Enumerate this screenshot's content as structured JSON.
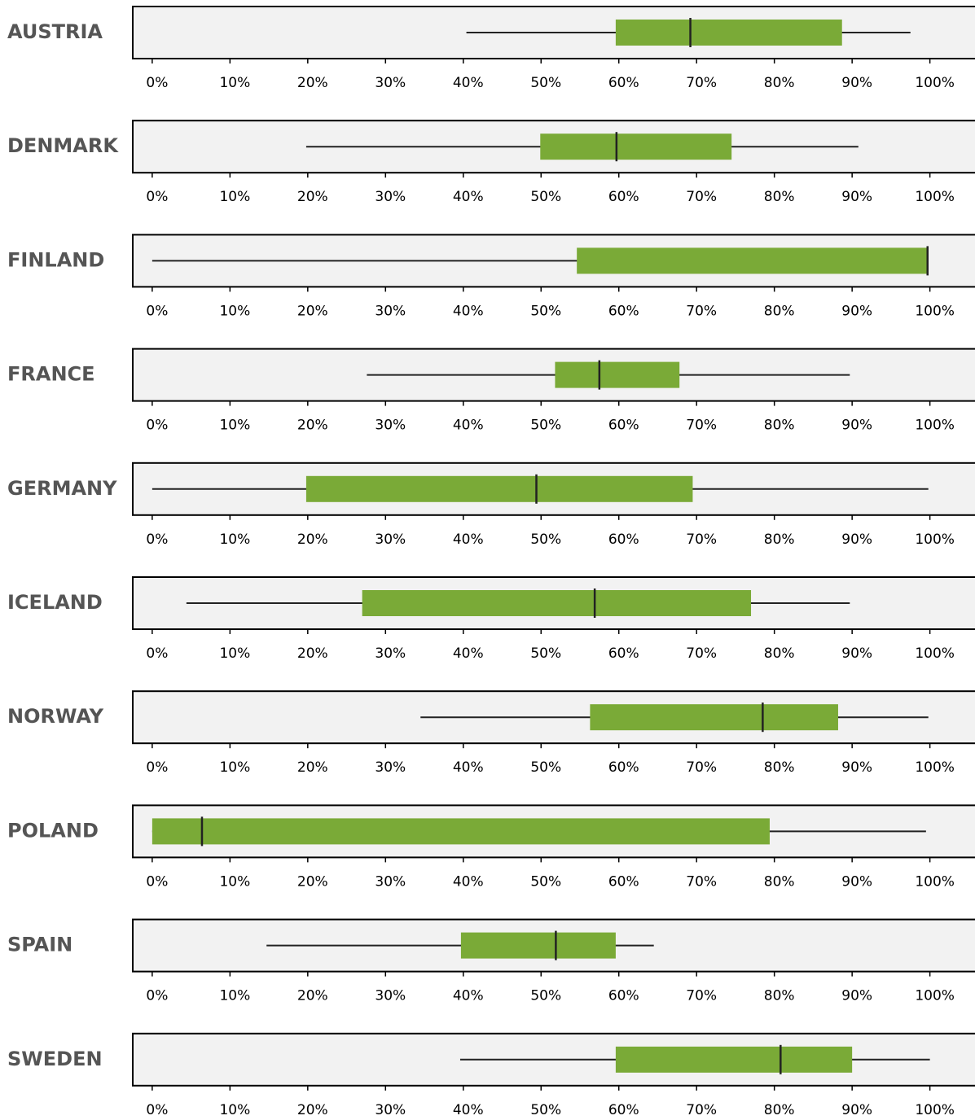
{
  "chart_data": [
    {
      "type": "box",
      "title": "AUSTRIA",
      "min": 40.4,
      "q1": 59.6,
      "median": 69.2,
      "q3": 88.7,
      "max": 97.5,
      "color": "#7aaa37",
      "xlim": [
        -2.5,
        105.8
      ],
      "xticks": [
        {
          "value": 0,
          "label": "0%"
        },
        {
          "value": 10,
          "label": "10%"
        },
        {
          "value": 20,
          "label": "20%"
        },
        {
          "value": 30,
          "label": "30%"
        },
        {
          "value": 40,
          "label": "40%"
        },
        {
          "value": 50,
          "label": "50%"
        },
        {
          "value": 60,
          "label": "60%"
        },
        {
          "value": 70,
          "label": "70%"
        },
        {
          "value": 80,
          "label": "80%"
        },
        {
          "value": 90,
          "label": "90%"
        },
        {
          "value": 100,
          "label": "100%"
        }
      ]
    },
    {
      "type": "box",
      "title": "DENMARK",
      "min": 19.8,
      "q1": 49.9,
      "median": 59.7,
      "q3": 74.5,
      "max": 90.8,
      "color": "#7aaa37",
      "xlim": [
        -2.5,
        105.8
      ],
      "xticks": [
        {
          "value": 0,
          "label": "0%"
        },
        {
          "value": 10,
          "label": "10%"
        },
        {
          "value": 20,
          "label": "20%"
        },
        {
          "value": 30,
          "label": "30%"
        },
        {
          "value": 40,
          "label": "40%"
        },
        {
          "value": 50,
          "label": "50%"
        },
        {
          "value": 60,
          "label": "60%"
        },
        {
          "value": 70,
          "label": "70%"
        },
        {
          "value": 80,
          "label": "80%"
        },
        {
          "value": 90,
          "label": "90%"
        },
        {
          "value": 100,
          "label": "100%"
        }
      ]
    },
    {
      "type": "box",
      "title": "FINLAND",
      "min": 0,
      "q1": 54.6,
      "median": 99.7,
      "q3": 99.7,
      "max": 99.7,
      "color": "#7aaa37",
      "xlim": [
        -2.5,
        105.8
      ],
      "xticks": [
        {
          "value": 0,
          "label": "0%"
        },
        {
          "value": 10,
          "label": "10%"
        },
        {
          "value": 20,
          "label": "20%"
        },
        {
          "value": 30,
          "label": "30%"
        },
        {
          "value": 40,
          "label": "40%"
        },
        {
          "value": 50,
          "label": "50%"
        },
        {
          "value": 60,
          "label": "60%"
        },
        {
          "value": 70,
          "label": "70%"
        },
        {
          "value": 80,
          "label": "80%"
        },
        {
          "value": 90,
          "label": "90%"
        },
        {
          "value": 100,
          "label": "100%"
        }
      ]
    },
    {
      "type": "box",
      "title": "FRANCE",
      "min": 27.6,
      "q1": 51.8,
      "median": 57.5,
      "q3": 67.8,
      "max": 89.7,
      "color": "#7aaa37",
      "xlim": [
        -2.5,
        105.8
      ],
      "xticks": [
        {
          "value": 0,
          "label": "0%"
        },
        {
          "value": 10,
          "label": "10%"
        },
        {
          "value": 20,
          "label": "20%"
        },
        {
          "value": 30,
          "label": "30%"
        },
        {
          "value": 40,
          "label": "40%"
        },
        {
          "value": 50,
          "label": "50%"
        },
        {
          "value": 60,
          "label": "60%"
        },
        {
          "value": 70,
          "label": "70%"
        },
        {
          "value": 80,
          "label": "80%"
        },
        {
          "value": 90,
          "label": "90%"
        },
        {
          "value": 100,
          "label": "100%"
        }
      ]
    },
    {
      "type": "box",
      "title": "GERMANY",
      "min": 0,
      "q1": 19.8,
      "median": 49.4,
      "q3": 69.5,
      "max": 99.8,
      "color": "#7aaa37",
      "xlim": [
        -2.5,
        105.8
      ],
      "xticks": [
        {
          "value": 0,
          "label": "0%"
        },
        {
          "value": 10,
          "label": "10%"
        },
        {
          "value": 20,
          "label": "20%"
        },
        {
          "value": 30,
          "label": "30%"
        },
        {
          "value": 40,
          "label": "40%"
        },
        {
          "value": 50,
          "label": "50%"
        },
        {
          "value": 60,
          "label": "60%"
        },
        {
          "value": 70,
          "label": "70%"
        },
        {
          "value": 80,
          "label": "80%"
        },
        {
          "value": 90,
          "label": "90%"
        },
        {
          "value": 100,
          "label": "100%"
        }
      ]
    },
    {
      "type": "box",
      "title": "ICELAND",
      "min": 4.4,
      "q1": 27,
      "median": 56.9,
      "q3": 77,
      "max": 89.7,
      "color": "#7aaa37",
      "xlim": [
        -2.5,
        105.8
      ],
      "xticks": [
        {
          "value": 0,
          "label": "0%"
        },
        {
          "value": 10,
          "label": "10%"
        },
        {
          "value": 20,
          "label": "20%"
        },
        {
          "value": 30,
          "label": "30%"
        },
        {
          "value": 40,
          "label": "40%"
        },
        {
          "value": 50,
          "label": "50%"
        },
        {
          "value": 60,
          "label": "60%"
        },
        {
          "value": 70,
          "label": "70%"
        },
        {
          "value": 80,
          "label": "80%"
        },
        {
          "value": 90,
          "label": "90%"
        },
        {
          "value": 100,
          "label": "100%"
        }
      ]
    },
    {
      "type": "box",
      "title": "NORWAY",
      "min": 34.5,
      "q1": 56.3,
      "median": 78.5,
      "q3": 88.2,
      "max": 99.8,
      "color": "#7aaa37",
      "xlim": [
        -2.5,
        105.8
      ],
      "xticks": [
        {
          "value": 0,
          "label": "0%"
        },
        {
          "value": 10,
          "label": "10%"
        },
        {
          "value": 20,
          "label": "20%"
        },
        {
          "value": 30,
          "label": "30%"
        },
        {
          "value": 40,
          "label": "40%"
        },
        {
          "value": 50,
          "label": "50%"
        },
        {
          "value": 60,
          "label": "60%"
        },
        {
          "value": 70,
          "label": "70%"
        },
        {
          "value": 80,
          "label": "80%"
        },
        {
          "value": 90,
          "label": "90%"
        },
        {
          "value": 100,
          "label": "100%"
        }
      ]
    },
    {
      "type": "box",
      "title": "POLAND",
      "min": 0,
      "q1": 0,
      "median": 6.4,
      "q3": 79.4,
      "max": 99.5,
      "color": "#7aaa37",
      "xlim": [
        -2.5,
        105.8
      ],
      "xticks": [
        {
          "value": 0,
          "label": "0%"
        },
        {
          "value": 10,
          "label": "10%"
        },
        {
          "value": 20,
          "label": "20%"
        },
        {
          "value": 30,
          "label": "30%"
        },
        {
          "value": 40,
          "label": "40%"
        },
        {
          "value": 50,
          "label": "50%"
        },
        {
          "value": 60,
          "label": "60%"
        },
        {
          "value": 70,
          "label": "70%"
        },
        {
          "value": 80,
          "label": "80%"
        },
        {
          "value": 90,
          "label": "90%"
        },
        {
          "value": 100,
          "label": "100%"
        }
      ]
    },
    {
      "type": "box",
      "title": "SPAIN",
      "min": 14.7,
      "q1": 39.7,
      "median": 51.9,
      "q3": 59.6,
      "max": 64.5,
      "color": "#7aaa37",
      "xlim": [
        -2.5,
        105.8
      ],
      "xticks": [
        {
          "value": 0,
          "label": "0%"
        },
        {
          "value": 10,
          "label": "10%"
        },
        {
          "value": 20,
          "label": "20%"
        },
        {
          "value": 30,
          "label": "30%"
        },
        {
          "value": 40,
          "label": "40%"
        },
        {
          "value": 50,
          "label": "50%"
        },
        {
          "value": 60,
          "label": "60%"
        },
        {
          "value": 70,
          "label": "70%"
        },
        {
          "value": 80,
          "label": "80%"
        },
        {
          "value": 90,
          "label": "90%"
        },
        {
          "value": 100,
          "label": "100%"
        }
      ]
    },
    {
      "type": "box",
      "title": "SWEDEN",
      "min": 39.6,
      "q1": 59.6,
      "median": 80.8,
      "q3": 90,
      "max": 100,
      "color": "#7aaa37",
      "xlim": [
        -2.5,
        105.8
      ],
      "xticks": [
        {
          "value": 0,
          "label": "0%"
        },
        {
          "value": 10,
          "label": "10%"
        },
        {
          "value": 20,
          "label": "20%"
        },
        {
          "value": 30,
          "label": "30%"
        },
        {
          "value": 40,
          "label": "40%"
        },
        {
          "value": 50,
          "label": "50%"
        },
        {
          "value": 60,
          "label": "60%"
        },
        {
          "value": 70,
          "label": "70%"
        },
        {
          "value": 80,
          "label": "80%"
        },
        {
          "value": 90,
          "label": "90%"
        },
        {
          "value": 100,
          "label": "100%"
        }
      ]
    }
  ]
}
